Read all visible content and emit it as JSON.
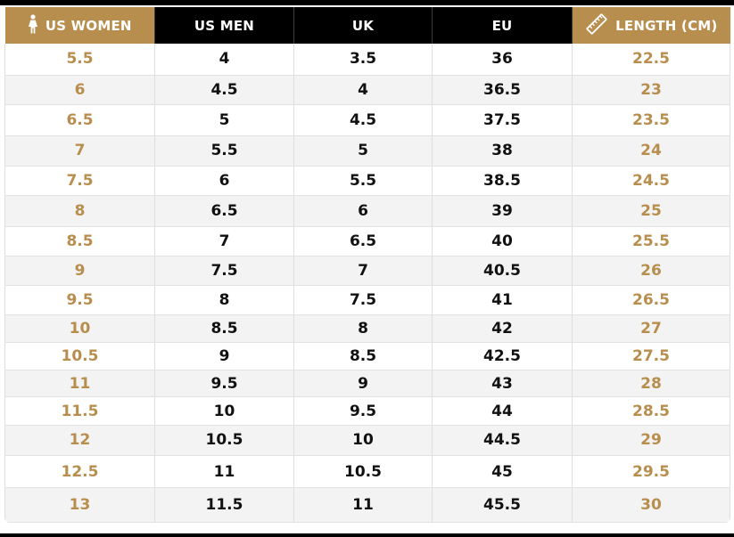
{
  "header": {
    "us_women": "US WOMEN",
    "us_men": "US MEN",
    "uk": "UK",
    "eu": "EU",
    "length": "LENGTH (CM)",
    "us_women_icon": "woman-icon",
    "length_icon": "ruler-icon"
  },
  "colors": {
    "gold": "#b88e4e",
    "black": "#000000"
  },
  "rows": [
    {
      "us_women": "5.5",
      "us_men": "4",
      "uk": "3.5",
      "eu": "36",
      "length": "22.5"
    },
    {
      "us_women": "6",
      "us_men": "4.5",
      "uk": "4",
      "eu": "36.5",
      "length": "23"
    },
    {
      "us_women": "6.5",
      "us_men": "5",
      "uk": "4.5",
      "eu": "37.5",
      "length": "23.5"
    },
    {
      "us_women": "7",
      "us_men": "5.5",
      "uk": "5",
      "eu": "38",
      "length": "24"
    },
    {
      "us_women": "7.5",
      "us_men": "6",
      "uk": "5.5",
      "eu": "38.5",
      "length": "24.5"
    },
    {
      "us_women": "8",
      "us_men": "6.5",
      "uk": "6",
      "eu": "39",
      "length": "25"
    },
    {
      "us_women": "8.5",
      "us_men": "7",
      "uk": "6.5",
      "eu": "40",
      "length": "25.5"
    },
    {
      "us_women": "9",
      "us_men": "7.5",
      "uk": "7",
      "eu": "40.5",
      "length": "26"
    },
    {
      "us_women": "9.5",
      "us_men": "8",
      "uk": "7.5",
      "eu": "41",
      "length": "26.5"
    },
    {
      "us_women": "10",
      "us_men": "8.5",
      "uk": "8",
      "eu": "42",
      "length": "27"
    },
    {
      "us_women": "10.5",
      "us_men": "9",
      "uk": "8.5",
      "eu": "42.5",
      "length": "27.5"
    },
    {
      "us_women": "11",
      "us_men": "9.5",
      "uk": "9",
      "eu": "43",
      "length": "28"
    },
    {
      "us_women": "11.5",
      "us_men": "10",
      "uk": "9.5",
      "eu": "44",
      "length": "28.5"
    },
    {
      "us_women": "12",
      "us_men": "10.5",
      "uk": "10",
      "eu": "44.5",
      "length": "29"
    },
    {
      "us_women": "12.5",
      "us_men": "11",
      "uk": "10.5",
      "eu": "45",
      "length": "29.5"
    },
    {
      "us_women": "13",
      "us_men": "11.5",
      "uk": "11",
      "eu": "45.5",
      "length": "30"
    }
  ]
}
